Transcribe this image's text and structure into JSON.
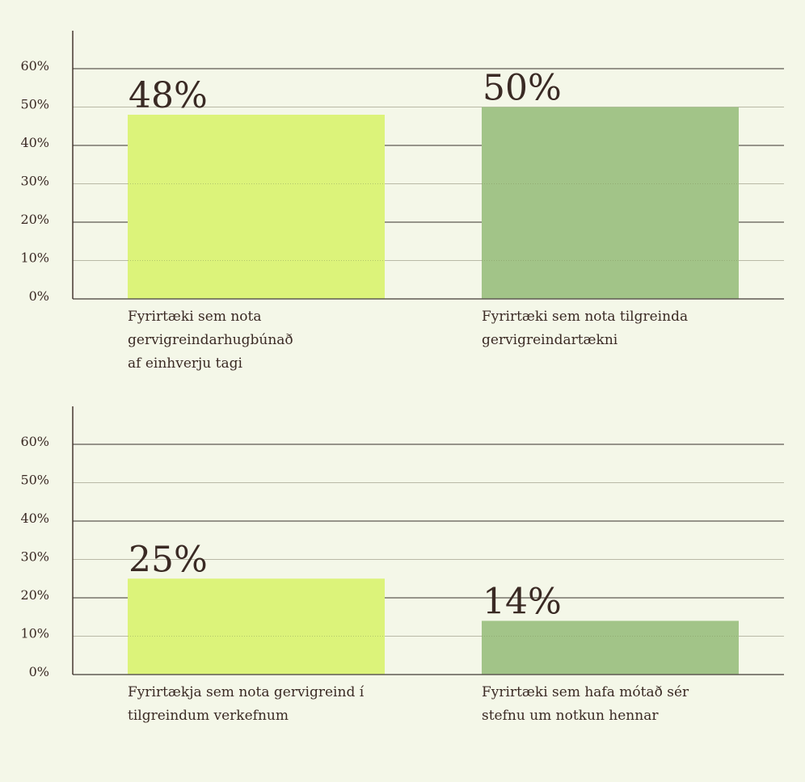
{
  "chart_data": [
    {
      "type": "bar",
      "title": "",
      "xlabel": "",
      "ylabel": "",
      "ylim": [
        0,
        60
      ],
      "yticks": [
        "0%",
        "10%",
        "20%",
        "30%",
        "40%",
        "50%",
        "60%"
      ],
      "grid": true,
      "categories": [
        [
          "Fyrirtæki sem nota",
          "gervigreindarhugbúnað",
          "af einhverju tagi"
        ],
        [
          "Fyrirtæki sem nota tilgreinda",
          "gervigreindartækni"
        ]
      ],
      "values": [
        48,
        50
      ],
      "data_labels": [
        "48%",
        "50%"
      ],
      "colors": [
        "#dcf37a",
        "#a2c488"
      ]
    },
    {
      "type": "bar",
      "title": "",
      "xlabel": "",
      "ylabel": "",
      "ylim": [
        0,
        60
      ],
      "yticks": [
        "0%",
        "10%",
        "20%",
        "30%",
        "40%",
        "50%",
        "60%"
      ],
      "grid": true,
      "categories": [
        [
          "Fyrirtækja sem nota gervigreind í",
          "tilgreindum verkefnum"
        ],
        [
          "Fyrirtæki sem hafa mótað sér",
          "stefnu um notkun hennar"
        ]
      ],
      "values": [
        25,
        14
      ],
      "data_labels": [
        "25%",
        "14%"
      ],
      "colors": [
        "#dcf37a",
        "#a2c488"
      ]
    }
  ]
}
